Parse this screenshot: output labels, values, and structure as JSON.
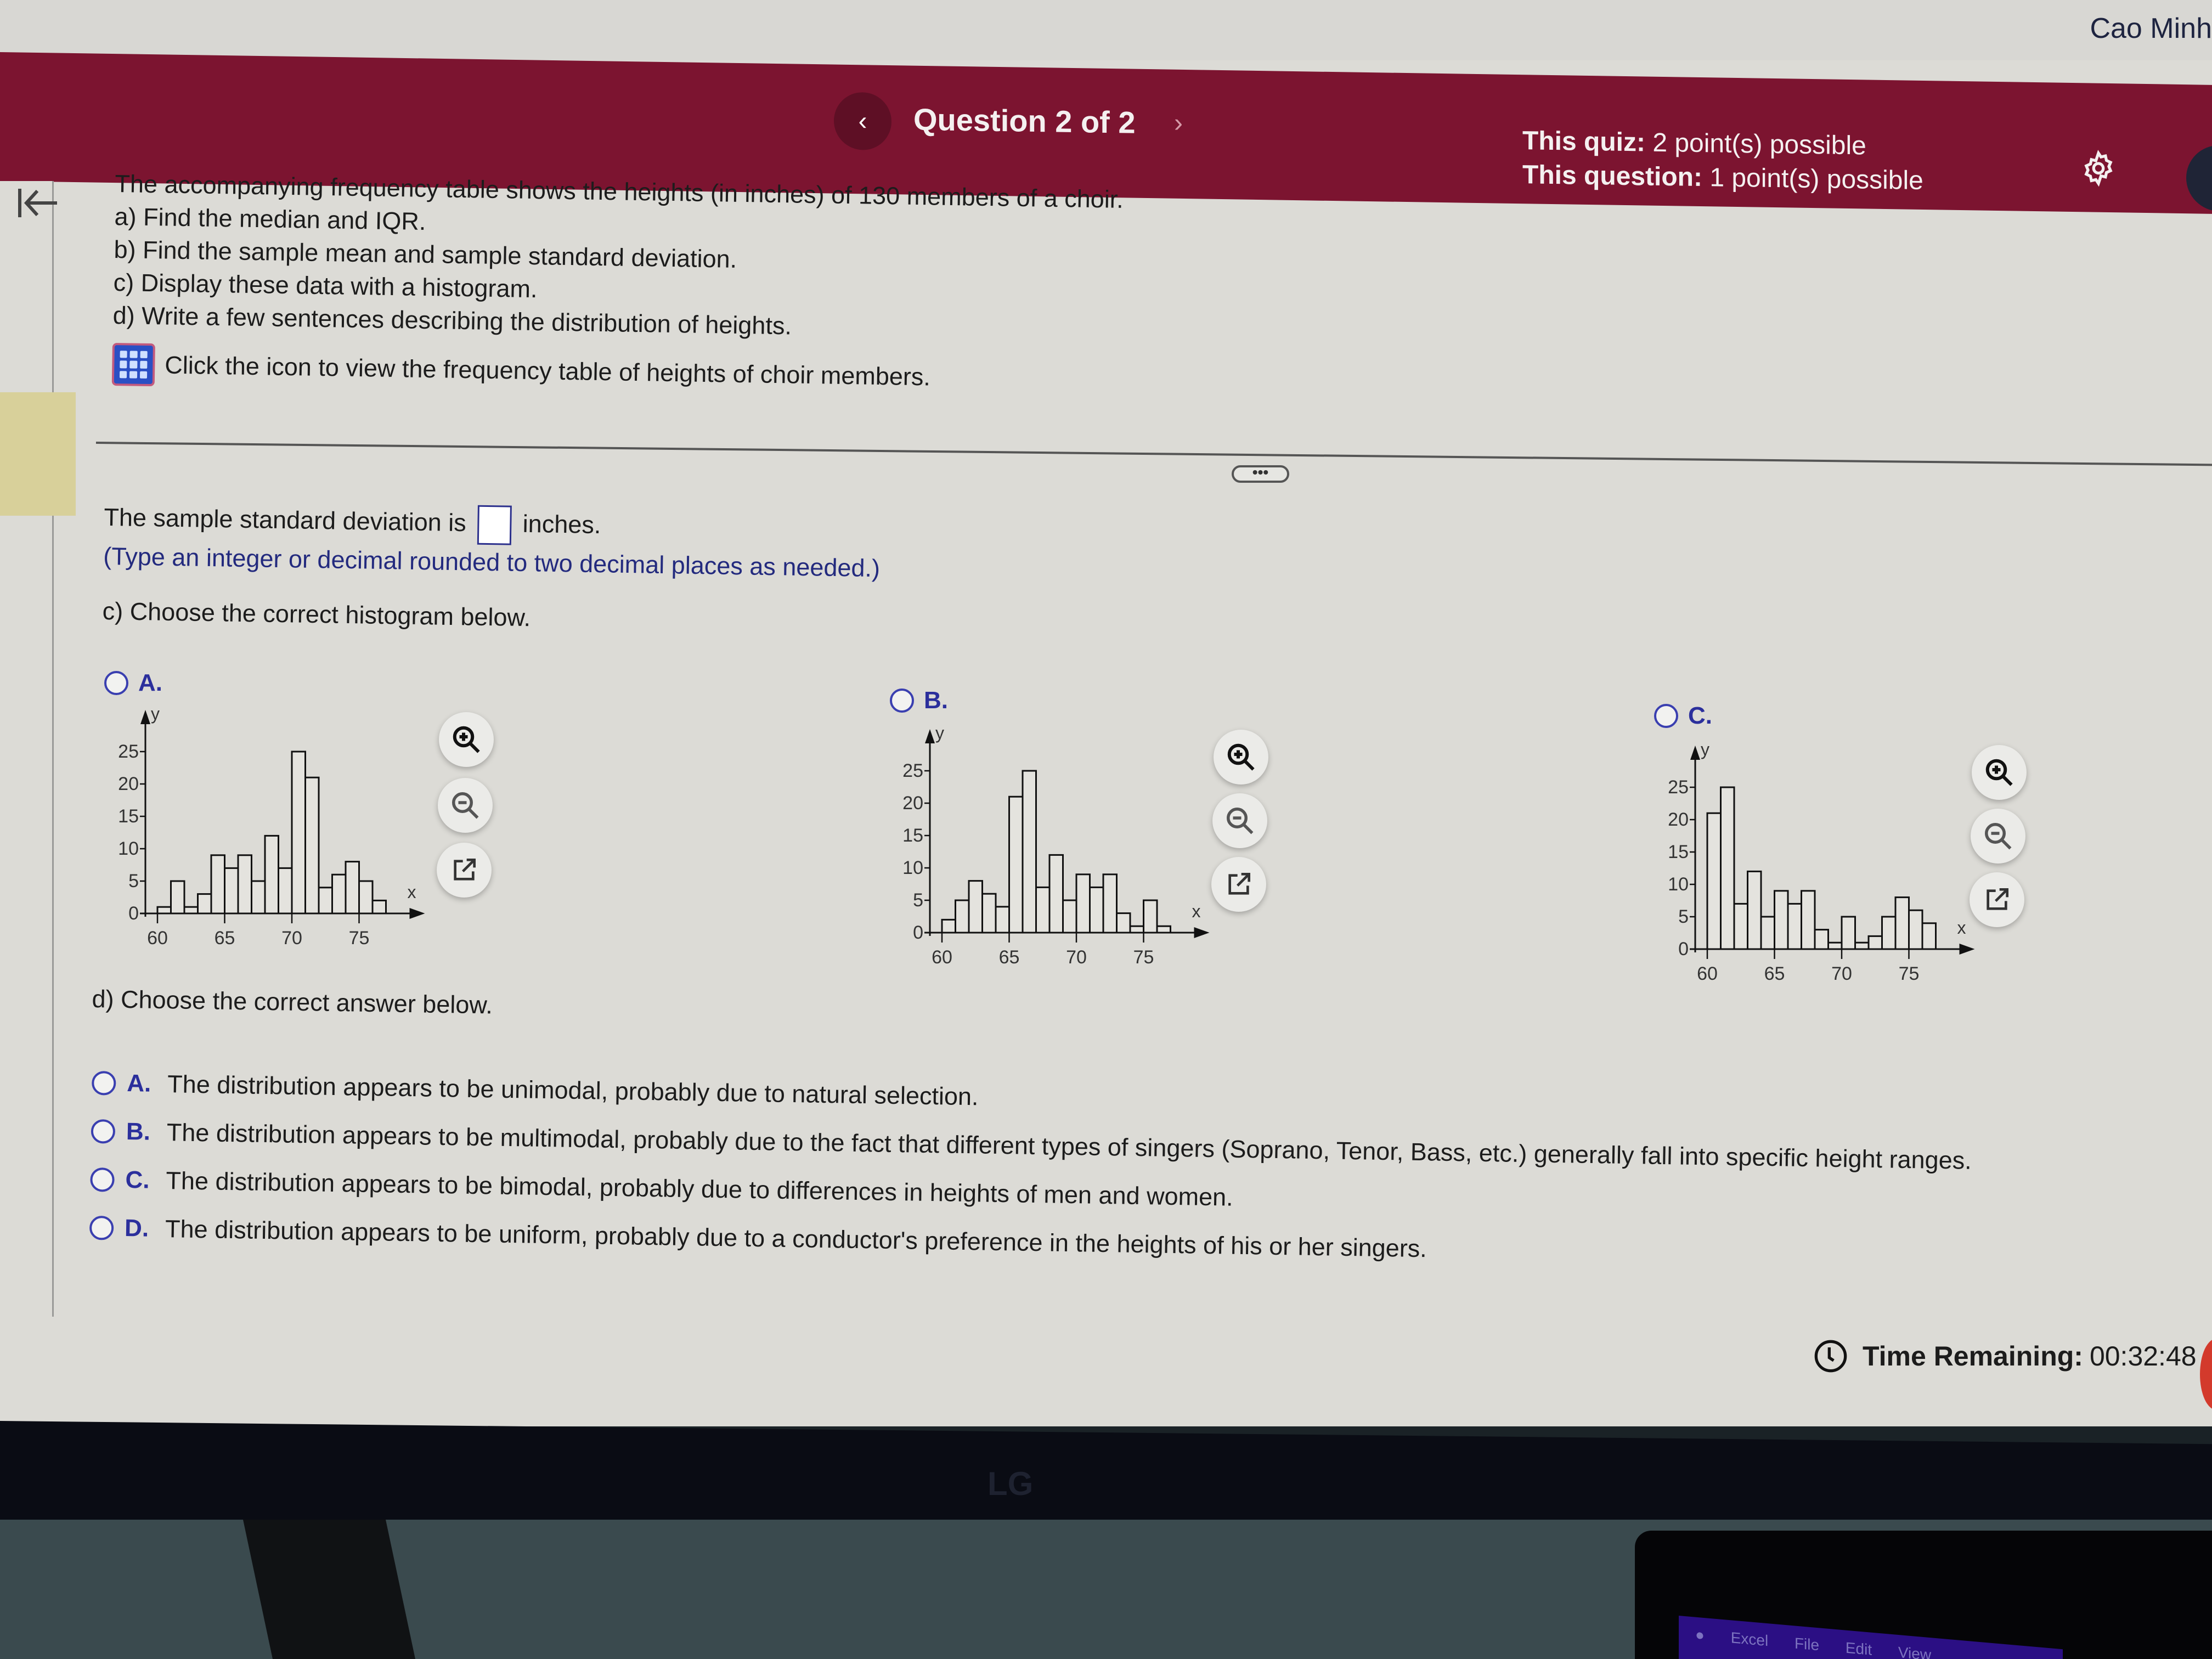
{
  "user": {
    "name": "Cao Minh"
  },
  "header": {
    "title": "Question 2 of 2",
    "prev_icon": "chevron-left-icon",
    "next_icon": "chevron-right-icon",
    "quiz_points_label": "This quiz:",
    "quiz_points_value": "2 point(s) possible",
    "question_points_label": "This question:",
    "question_points_value": "1 point(s) possible",
    "settings_icon": "gear-icon"
  },
  "sidebar": {
    "collapse_icon": "collapse-left-icon"
  },
  "question": {
    "intro": "The accompanying frequency table shows the heights (in inches) of 130 members of a choir.",
    "parts": [
      "a) Find the median and IQR.",
      "b) Find the sample mean and sample standard deviation.",
      "c) Display these data with a histogram.",
      "d) Write a few sentences describing the distribution of heights."
    ],
    "table_link_text": "Click the icon to view the frequency table of heights of choir members.",
    "table_icon": "table-icon"
  },
  "divider": {
    "expand_label": "•••"
  },
  "part_b": {
    "prefix": "The sample standard deviation is",
    "suffix": "inches.",
    "input_value": "",
    "hint": "(Type an integer or decimal rounded to two decimal places as needed.)"
  },
  "part_c": {
    "prompt": "c) Choose the correct histogram below.",
    "options": [
      {
        "letter": "A.",
        "selected": false
      },
      {
        "letter": "B.",
        "selected": false
      },
      {
        "letter": "C.",
        "selected": false
      }
    ],
    "tools": [
      "zoom-in-icon",
      "zoom-out-icon",
      "open-external-icon"
    ]
  },
  "chart_data": [
    {
      "type": "bar",
      "title": "A.",
      "xlabel": "x",
      "ylabel": "y",
      "x_start": 60,
      "bin_width": 1,
      "categories": [
        60,
        61,
        62,
        63,
        64,
        65,
        66,
        67,
        68,
        69,
        70,
        71,
        72,
        73,
        74,
        75,
        76
      ],
      "values": [
        1,
        5,
        1,
        3,
        9,
        7,
        9,
        5,
        12,
        7,
        25,
        21,
        4,
        6,
        8,
        5,
        2
      ],
      "xticks": [
        60,
        65,
        70,
        75
      ],
      "yticks": [
        0,
        5,
        10,
        15,
        20,
        25
      ],
      "ylim": [
        0,
        28
      ],
      "grid": false
    },
    {
      "type": "bar",
      "title": "B.",
      "xlabel": "x",
      "ylabel": "y",
      "x_start": 60,
      "bin_width": 1,
      "categories": [
        60,
        61,
        62,
        63,
        64,
        65,
        66,
        67,
        68,
        69,
        70,
        71,
        72,
        73,
        74,
        75,
        76
      ],
      "values": [
        2,
        5,
        8,
        6,
        4,
        21,
        25,
        7,
        12,
        5,
        9,
        7,
        9,
        3,
        1,
        5,
        1
      ],
      "xticks": [
        60,
        65,
        70,
        75
      ],
      "yticks": [
        0,
        5,
        10,
        15,
        20,
        25
      ],
      "ylim": [
        0,
        28
      ],
      "grid": false
    },
    {
      "type": "bar",
      "title": "C.",
      "xlabel": "x",
      "ylabel": "y",
      "x_start": 60,
      "bin_width": 1,
      "categories": [
        60,
        61,
        62,
        63,
        64,
        65,
        66,
        67,
        68,
        69,
        70,
        71,
        72,
        73,
        74,
        75,
        76
      ],
      "values": [
        21,
        25,
        7,
        12,
        5,
        9,
        7,
        9,
        3,
        1,
        5,
        1,
        2,
        5,
        8,
        6,
        4
      ],
      "xticks": [
        60,
        65,
        70,
        75
      ],
      "yticks": [
        0,
        5,
        10,
        15,
        20,
        25
      ],
      "ylim": [
        0,
        28
      ],
      "grid": false
    }
  ],
  "part_d": {
    "prompt": "d) Choose the correct answer below.",
    "options": [
      {
        "letter": "A.",
        "text": "The distribution appears to be unimodal, probably due to natural selection."
      },
      {
        "letter": "B.",
        "text": "The distribution appears to be multimodal, probably due to the fact that different types of singers (Soprano, Tenor, Bass, etc.) generally fall into specific height ranges."
      },
      {
        "letter": "C.",
        "text": "The distribution appears to be bimodal, probably due to differences in heights of men and women."
      },
      {
        "letter": "D.",
        "text": "The distribution appears to be uniform, probably due to a conductor's preference in the heights of his or her singers."
      }
    ]
  },
  "timer": {
    "label": "Time Remaining:",
    "value": "00:32:48",
    "icon": "clock-icon"
  },
  "monitor": {
    "brand": "LG"
  },
  "laptop_menu": [
    "Excel",
    "File",
    "Edit",
    "View"
  ],
  "colors": {
    "header_bg": "#7c1430",
    "accent_blue": "#2b2f9c",
    "page_bg": "#dcdbd6"
  }
}
